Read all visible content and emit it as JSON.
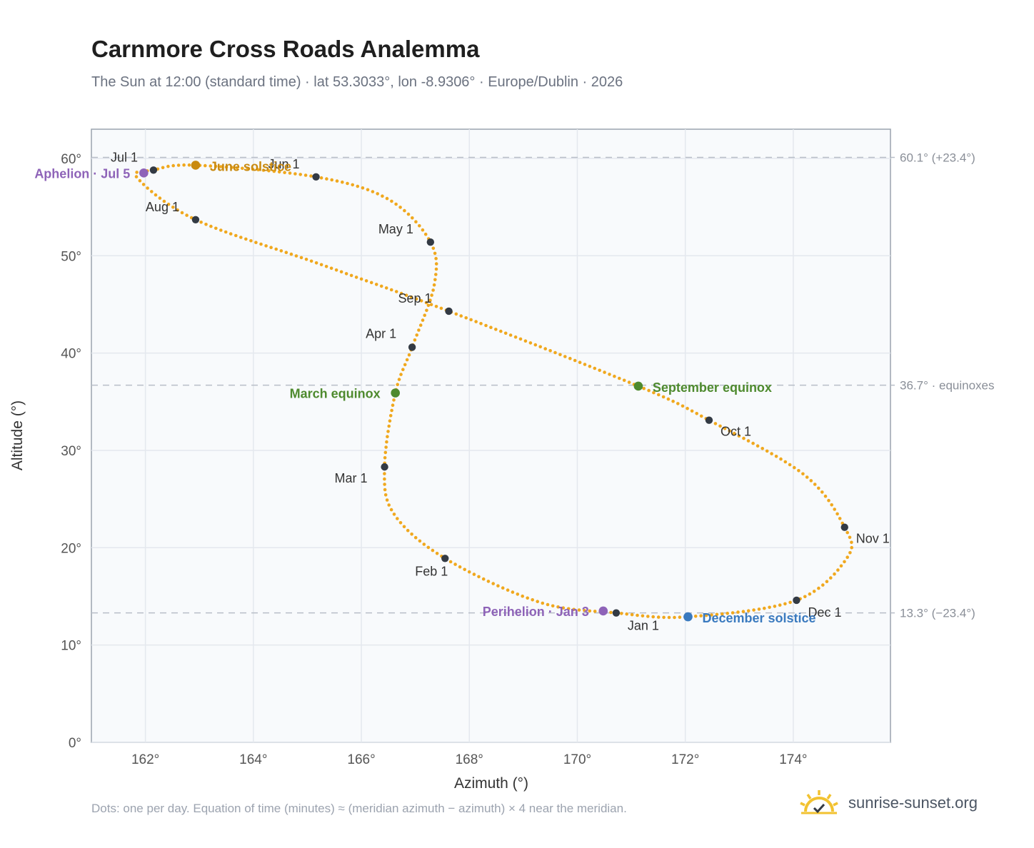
{
  "header": {
    "title": "Carnmore Cross Roads Analemma",
    "subtitle": "The Sun at 12:00 (standard time) · lat 53.3033°, lon -8.9306° · Europe/Dublin · 2026"
  },
  "footnote": "Dots: one per day. Equation of time (minutes) ≈ (meridian azimuth − azimuth) × 4 near the meridian.",
  "brand": {
    "name": "sunrise-sunset.org",
    "icon": "sun-logo-icon"
  },
  "colors": {
    "curve": "#f0a81e",
    "month_marker": "#333a44",
    "aphelion": "#8e63b8",
    "perihelion": "#8e63b8",
    "june_solstice": "#c98a10",
    "december_solstice": "#3a7abf",
    "equinox": "#4e8a2e",
    "plot_bg": "#f8fafc",
    "grid": "#e4e8ee",
    "ref_line": "#b8bec8"
  },
  "chart_data": {
    "type": "scatter",
    "title": "Carnmore Cross Roads Analemma",
    "xlabel": "Azimuth (°)",
    "ylabel": "Altitude (°)",
    "xlim": [
      161.0,
      175.8
    ],
    "ylim": [
      0,
      63
    ],
    "x_ticks": [
      162,
      164,
      166,
      168,
      170,
      172,
      174
    ],
    "x_tick_labels": [
      "162°",
      "164°",
      "166°",
      "168°",
      "170°",
      "172°",
      "174°"
    ],
    "y_ticks": [
      0,
      10,
      20,
      30,
      40,
      50,
      60
    ],
    "y_tick_labels": [
      "0°",
      "10°",
      "20°",
      "30°",
      "40°",
      "50°",
      "60°"
    ],
    "grid": true,
    "reference_lines": [
      {
        "y": 60.1,
        "label": "60.1° (+23.4°)"
      },
      {
        "y": 36.7,
        "label": "36.7° · equinoxes"
      },
      {
        "y": 13.3,
        "label": "13.3° (−23.4°)"
      }
    ],
    "month_markers": [
      {
        "label": "Jan 1",
        "az": 170.72,
        "alt": 13.3
      },
      {
        "label": "Feb 1",
        "az": 167.55,
        "alt": 18.9
      },
      {
        "label": "Mar 1",
        "az": 166.43,
        "alt": 28.3
      },
      {
        "label": "Apr 1",
        "az": 166.94,
        "alt": 40.6
      },
      {
        "label": "May 1",
        "az": 167.28,
        "alt": 51.4
      },
      {
        "label": "Jun 1",
        "az": 165.16,
        "alt": 58.1
      },
      {
        "label": "Jul 1",
        "az": 162.15,
        "alt": 58.8
      },
      {
        "label": "Aug 1",
        "az": 162.93,
        "alt": 53.7
      },
      {
        "label": "Sep 1",
        "az": 167.62,
        "alt": 44.3
      },
      {
        "label": "Oct 1",
        "az": 172.44,
        "alt": 33.1
      },
      {
        "label": "Nov 1",
        "az": 174.95,
        "alt": 22.1
      },
      {
        "label": "Dec 1",
        "az": 174.06,
        "alt": 14.6
      }
    ],
    "events": [
      {
        "label": "Aphelion · Jul 5",
        "az": 161.97,
        "alt": 58.5,
        "color_key": "aphelion"
      },
      {
        "label": "June solstice",
        "az": 162.93,
        "alt": 59.3,
        "color_key": "june_solstice"
      },
      {
        "label": "March equinox",
        "az": 166.63,
        "alt": 35.9,
        "color_key": "equinox"
      },
      {
        "label": "September equinox",
        "az": 171.13,
        "alt": 36.6,
        "color_key": "equinox"
      },
      {
        "label": "Perihelion · Jan 3",
        "az": 170.48,
        "alt": 13.5,
        "color_key": "perihelion"
      },
      {
        "label": "December solstice",
        "az": 172.05,
        "alt": 12.9,
        "color_key": "december_solstice"
      }
    ],
    "daily_points_note": "one per day",
    "curve_control_points": [
      {
        "az": 170.72,
        "alt": 13.3
      },
      {
        "az": 169.3,
        "alt": 14.4
      },
      {
        "az": 167.55,
        "alt": 18.9
      },
      {
        "az": 166.6,
        "alt": 23.5
      },
      {
        "az": 166.43,
        "alt": 28.3
      },
      {
        "az": 166.63,
        "alt": 35.9
      },
      {
        "az": 166.94,
        "alt": 40.6
      },
      {
        "az": 167.35,
        "alt": 47.0
      },
      {
        "az": 167.28,
        "alt": 51.4
      },
      {
        "az": 166.5,
        "alt": 55.8
      },
      {
        "az": 165.16,
        "alt": 58.1
      },
      {
        "az": 162.93,
        "alt": 59.3
      },
      {
        "az": 162.15,
        "alt": 58.8
      },
      {
        "az": 161.85,
        "alt": 58.0
      },
      {
        "az": 162.93,
        "alt": 53.7
      },
      {
        "az": 165.2,
        "alt": 49.2
      },
      {
        "az": 167.62,
        "alt": 44.3
      },
      {
        "az": 171.13,
        "alt": 36.6
      },
      {
        "az": 172.44,
        "alt": 33.1
      },
      {
        "az": 174.2,
        "alt": 27.5
      },
      {
        "az": 174.95,
        "alt": 22.1
      },
      {
        "az": 175.0,
        "alt": 19.0
      },
      {
        "az": 174.06,
        "alt": 14.6
      },
      {
        "az": 172.05,
        "alt": 12.9
      },
      {
        "az": 170.72,
        "alt": 13.3
      }
    ]
  }
}
